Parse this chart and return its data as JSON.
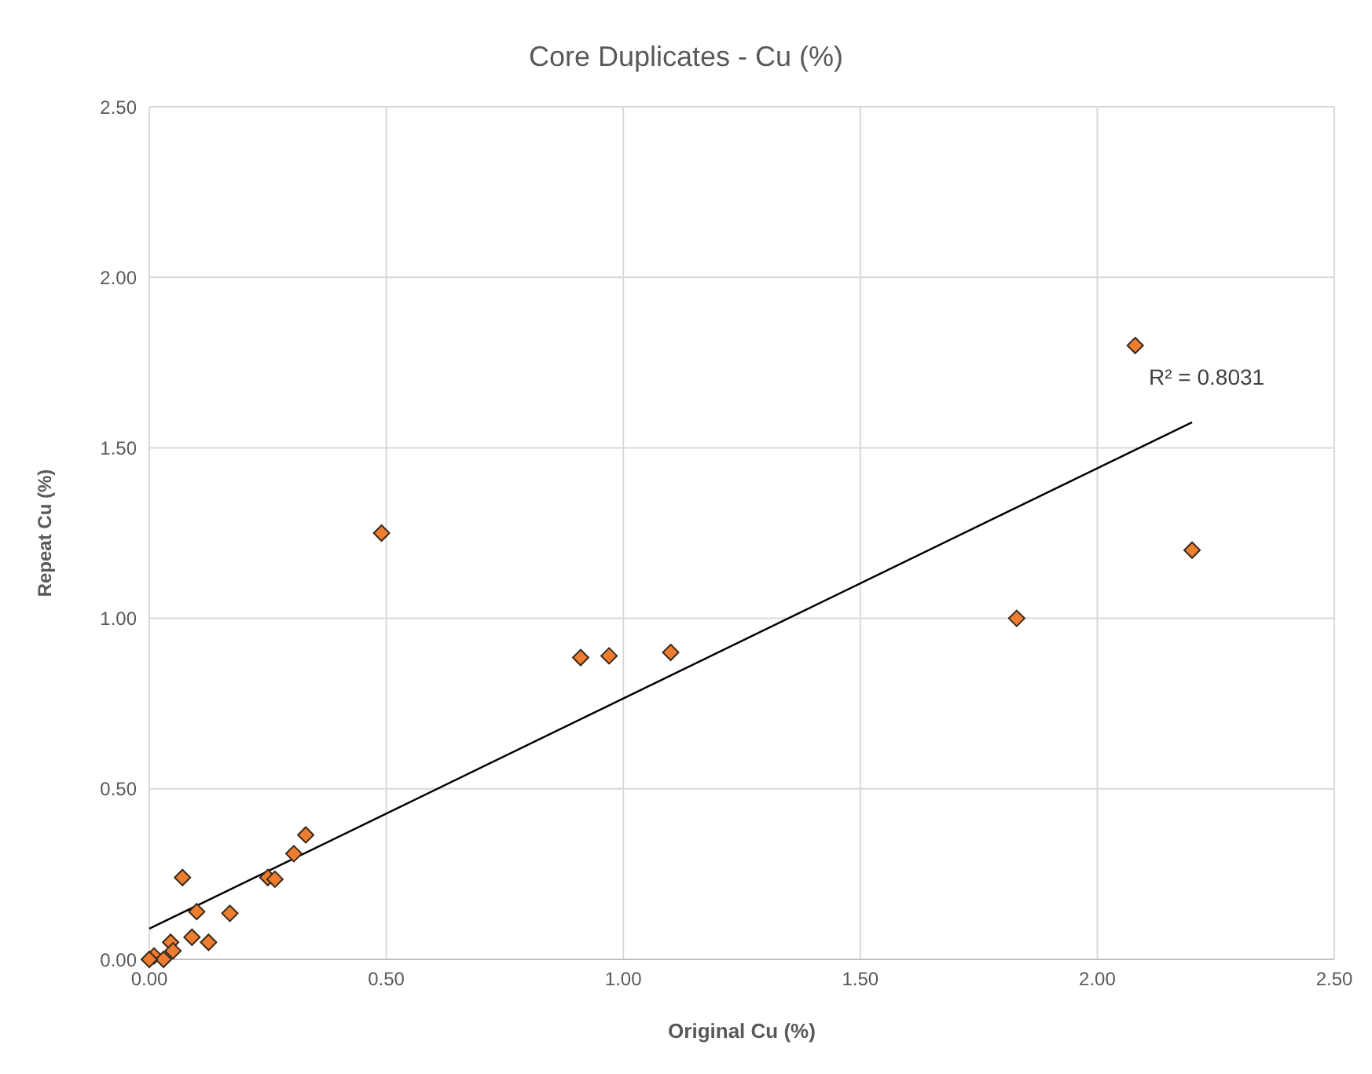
{
  "chart_data": {
    "type": "scatter",
    "title": "Core Duplicates - Cu (%)",
    "xlabel": "Original Cu (%)",
    "ylabel": "Repeat Cu (%)",
    "xlim": [
      0,
      2.5
    ],
    "ylim": [
      0,
      2.5
    ],
    "xticks": [
      {
        "value": 0,
        "label": "0.00"
      },
      {
        "value": 0.5,
        "label": "0.50"
      },
      {
        "value": 1,
        "label": "1.00"
      },
      {
        "value": 1.5,
        "label": "1.50"
      },
      {
        "value": 2,
        "label": "2.00"
      },
      {
        "value": 2.5,
        "label": "2.50"
      }
    ],
    "yticks": [
      {
        "value": 0,
        "label": "0.00"
      },
      {
        "value": 0.5,
        "label": "0.50"
      },
      {
        "value": 1,
        "label": "1.00"
      },
      {
        "value": 1.5,
        "label": "1.50"
      },
      {
        "value": 2,
        "label": "2.00"
      },
      {
        "value": 2.5,
        "label": "2.50"
      }
    ],
    "grid": true,
    "marker": "diamond",
    "series": [
      {
        "color": "#ed7d31",
        "x": [
          0.01,
          0.03,
          0.045,
          0.05,
          0.07,
          0.09,
          0.1,
          0.125,
          0.17,
          0.25,
          0.265,
          0.305,
          0.33,
          0.49,
          0.91,
          0.97,
          1.1,
          1.83,
          2.08,
          2.2,
          0
        ],
        "values": [
          0.01,
          0,
          0.05,
          0.025,
          0.24,
          0.065,
          0.14,
          0.05,
          0.135,
          0.24,
          0.235,
          0.31,
          0.365,
          1.25,
          0.885,
          0.89,
          0.9,
          1.0,
          1.8,
          1.2,
          0
        ]
      },
      {
        "type": "line",
        "color": "#000000",
        "marker": "none",
        "x": [
          0,
          2.2
        ],
        "values": [
          0.09,
          1.575
        ]
      }
    ],
    "annotations": [
      "R² = 0.8031"
    ]
  }
}
